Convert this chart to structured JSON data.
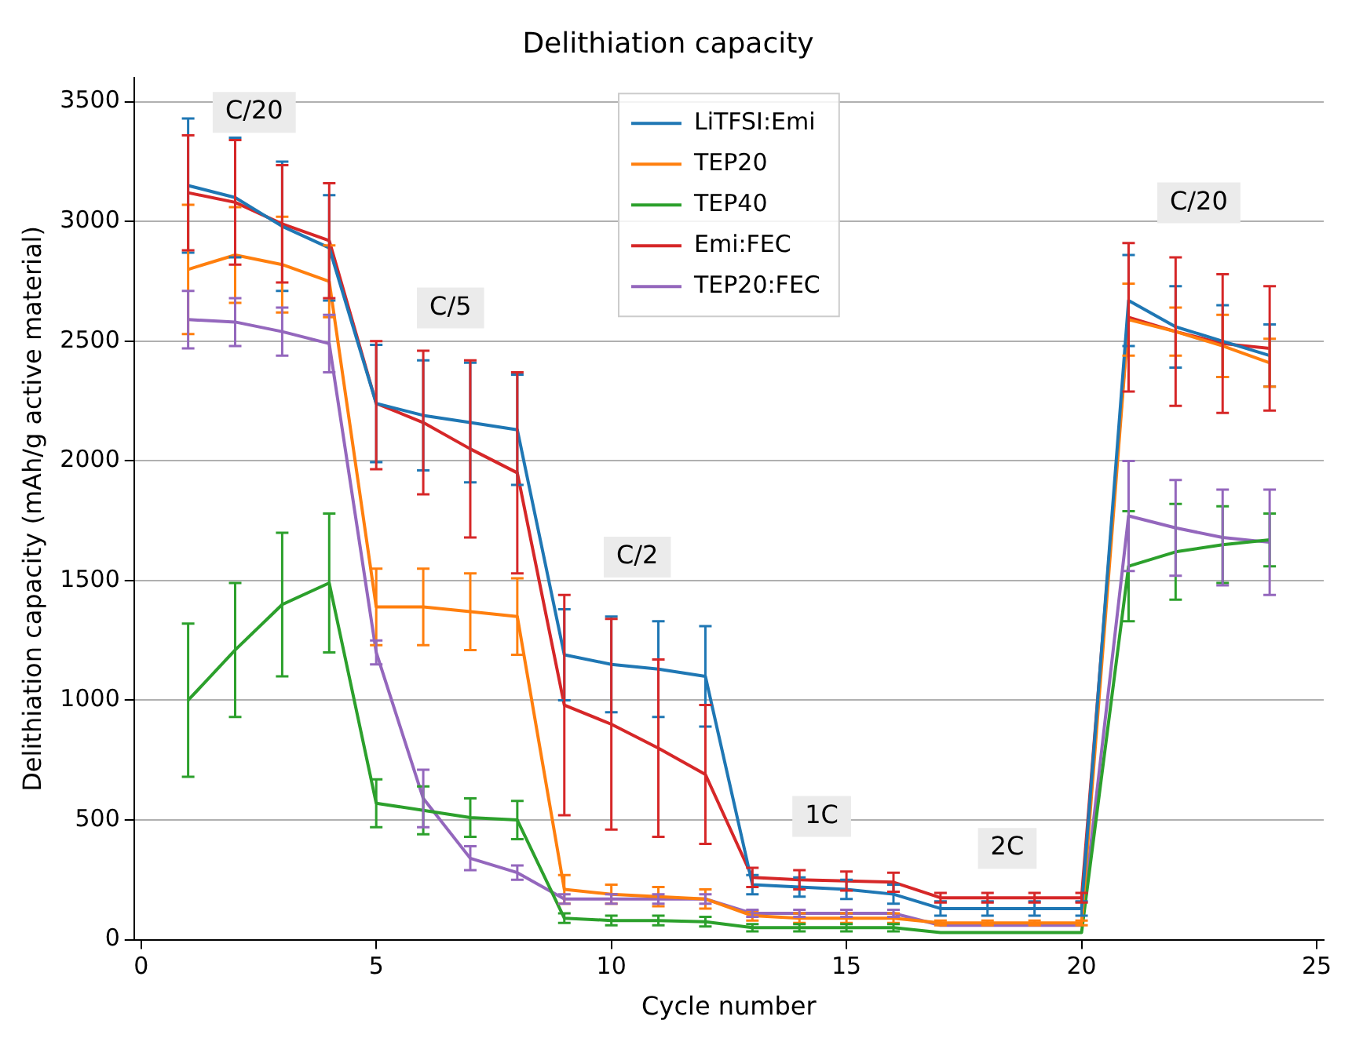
{
  "chart_data": {
    "type": "line",
    "title": "Delithiation capacity",
    "xlabel": "Cycle number",
    "ylabel": "Delithiation capacity (mAh/g active material)",
    "x": [
      1,
      2,
      3,
      4,
      5,
      6,
      7,
      8,
      9,
      10,
      11,
      12,
      13,
      14,
      15,
      16,
      17,
      18,
      19,
      20,
      21,
      22,
      23,
      24
    ],
    "xlim": [
      -0.15,
      25.15
    ],
    "xticks": [
      0,
      5,
      10,
      15,
      20,
      25
    ],
    "ylim": [
      0,
      3600
    ],
    "yticks": [
      0,
      500,
      1000,
      1500,
      2000,
      2500,
      3000,
      3500
    ],
    "grid": "y",
    "legend": "top",
    "marker": "none",
    "line_style": "solid",
    "series": [
      {
        "name": "LiTFSI:Emi",
        "color": "#1f77b4",
        "values": [
          3150,
          3100,
          2980,
          2890,
          2240,
          2190,
          2160,
          2130,
          1190,
          1150,
          1130,
          1100,
          230,
          220,
          210,
          190,
          130,
          130,
          130,
          130,
          2670,
          2560,
          2500,
          2440
        ],
        "errors": [
          280,
          250,
          270,
          220,
          245,
          230,
          250,
          230,
          190,
          200,
          200,
          210,
          40,
          40,
          40,
          40,
          30,
          30,
          30,
          30,
          190,
          170,
          150,
          130
        ]
      },
      {
        "name": "TEP20",
        "color": "#ff7f0e",
        "values": [
          2800,
          2860,
          2820,
          2750,
          1390,
          1390,
          1370,
          1350,
          210,
          190,
          180,
          170,
          100,
          90,
          90,
          90,
          70,
          70,
          70,
          70,
          2590,
          2540,
          2480,
          2410
        ],
        "errors": [
          270,
          200,
          200,
          150,
          160,
          160,
          160,
          160,
          60,
          40,
          40,
          40,
          20,
          20,
          20,
          20,
          10,
          10,
          10,
          10,
          150,
          100,
          130,
          100
        ]
      },
      {
        "name": "TEP40",
        "color": "#2ca02c",
        "values": [
          1000,
          1210,
          1400,
          1490,
          570,
          540,
          510,
          500,
          90,
          80,
          80,
          75,
          50,
          50,
          50,
          50,
          30,
          30,
          30,
          30,
          1560,
          1620,
          1650,
          1670
        ],
        "errors": [
          320,
          280,
          300,
          290,
          100,
          100,
          80,
          80,
          20,
          20,
          20,
          20,
          15,
          15,
          15,
          15,
          null,
          null,
          null,
          null,
          230,
          200,
          160,
          110
        ]
      },
      {
        "name": "Emi:FEC",
        "color": "#d62728",
        "values": [
          3120,
          3080,
          2990,
          2920,
          2240,
          2160,
          2050,
          1950,
          980,
          900,
          800,
          690,
          260,
          250,
          245,
          240,
          175,
          175,
          175,
          175,
          2600,
          2540,
          2490,
          2470
        ],
        "errors": [
          240,
          260,
          245,
          240,
          [
            1965,
            2500
          ],
          300,
          370,
          420,
          460,
          440,
          370,
          290,
          40,
          40,
          40,
          40,
          20,
          20,
          20,
          20,
          310,
          310,
          290,
          260
        ]
      },
      {
        "name": "TEP20:FEC",
        "color": "#9467bd",
        "values": [
          2590,
          2580,
          2540,
          2490,
          1200,
          590,
          340,
          280,
          170,
          170,
          170,
          170,
          110,
          110,
          110,
          110,
          60,
          60,
          60,
          60,
          1770,
          1720,
          1680,
          1660
        ],
        "errors": [
          120,
          100,
          100,
          120,
          50,
          120,
          50,
          30,
          20,
          20,
          20,
          20,
          15,
          15,
          15,
          15,
          null,
          null,
          null,
          null,
          230,
          200,
          200,
          220
        ]
      }
    ],
    "annotations": [
      "C/20",
      "C/5",
      "C/2",
      "1C",
      "2C",
      "C/20"
    ]
  }
}
